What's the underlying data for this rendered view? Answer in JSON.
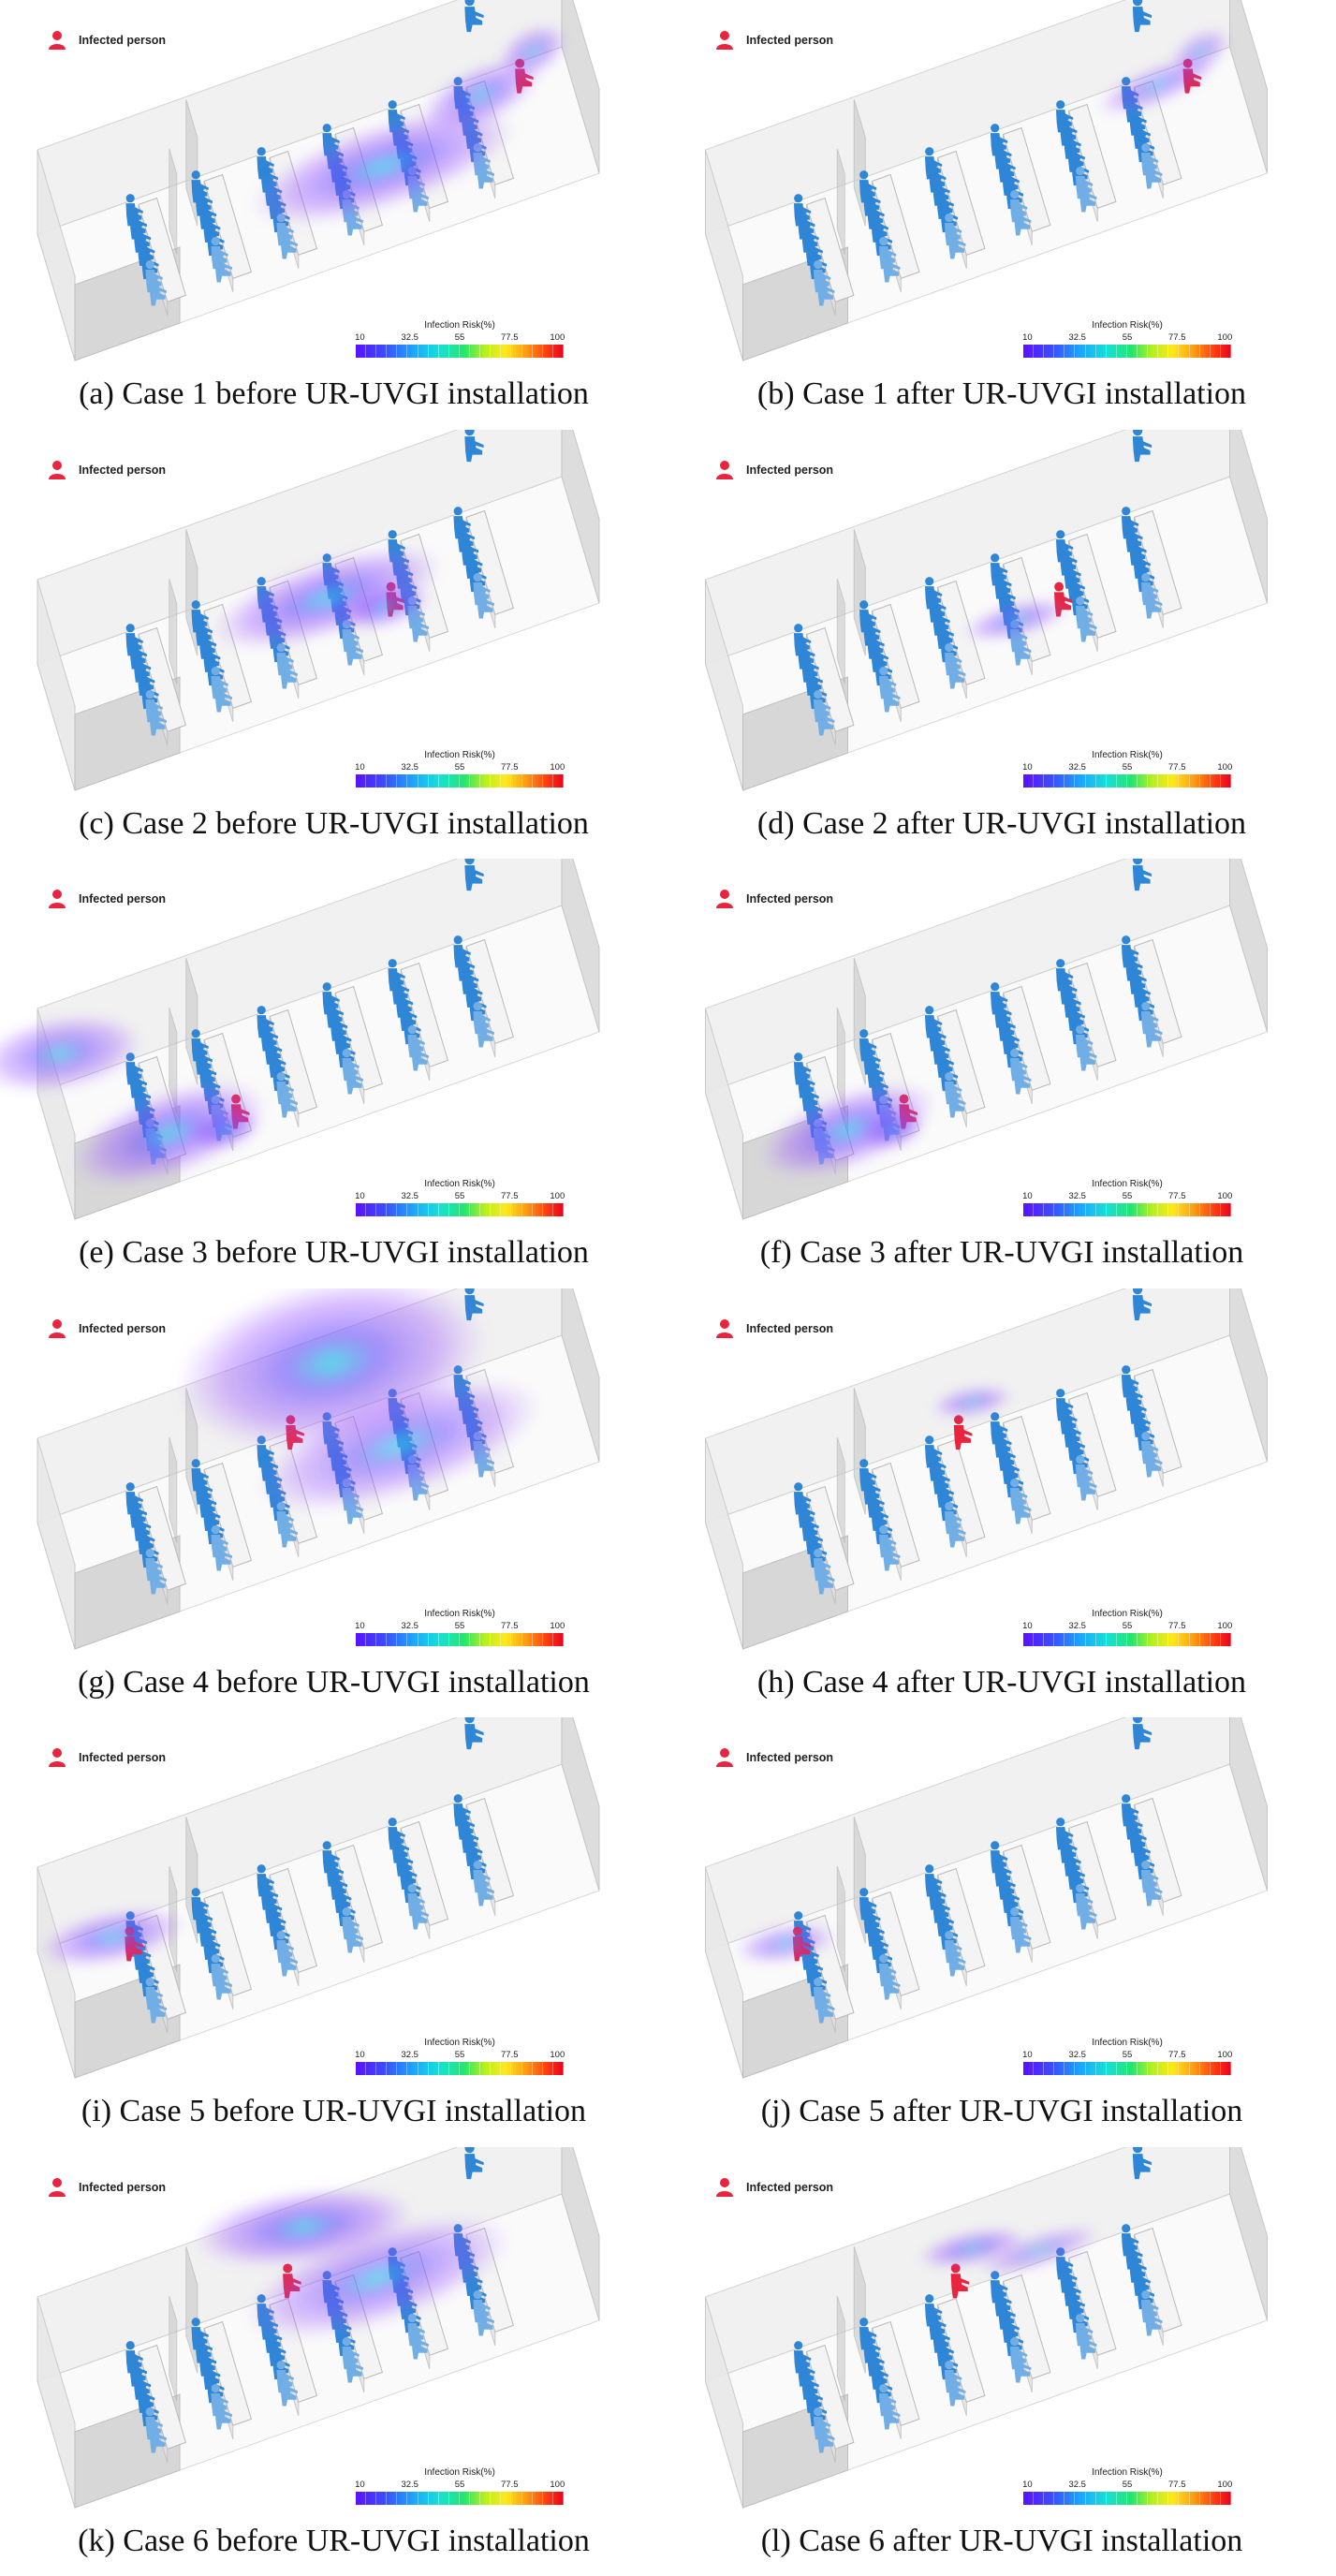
{
  "legend": {
    "label": "Infected person"
  },
  "colorbar": {
    "title": "Infection Risk(%)",
    "ticks": [
      "10",
      "32.5",
      "55",
      "77.5",
      "100"
    ]
  },
  "colors": {
    "occupant": "#2f86d6",
    "infected": "#e8243e",
    "plume_core": "#8a3dff",
    "wall": "#e6e6e6"
  },
  "icons": {
    "person": "person-icon"
  },
  "panels": [
    {
      "caption": "(a) Case 1 before UR-UVGI installation",
      "case": 1,
      "state": "before"
    },
    {
      "caption": "(b) Case 1 after UR-UVGI installation",
      "case": 1,
      "state": "after"
    },
    {
      "caption": "(c) Case 2 before UR-UVGI installation",
      "case": 2,
      "state": "before"
    },
    {
      "caption": "(d) Case 2 after UR-UVGI installation",
      "case": 2,
      "state": "after"
    },
    {
      "caption": "(e) Case 3 before UR-UVGI installation",
      "case": 3,
      "state": "before"
    },
    {
      "caption": "(f) Case 3 after UR-UVGI installation",
      "case": 3,
      "state": "after"
    },
    {
      "caption": "(g) Case 4 before UR-UVGI installation",
      "case": 4,
      "state": "before"
    },
    {
      "caption": "(h) Case 4 after UR-UVGI installation",
      "case": 4,
      "state": "after"
    },
    {
      "caption": "(i) Case 5 before UR-UVGI installation",
      "case": 5,
      "state": "before"
    },
    {
      "caption": "(j) Case 5 after UR-UVGI installation",
      "case": 5,
      "state": "after"
    },
    {
      "caption": "(k) Case 6 before UR-UVGI installation",
      "case": 6,
      "state": "before"
    },
    {
      "caption": "(l) Case 6 after UR-UVGI installation",
      "case": 6,
      "state": "after"
    }
  ]
}
